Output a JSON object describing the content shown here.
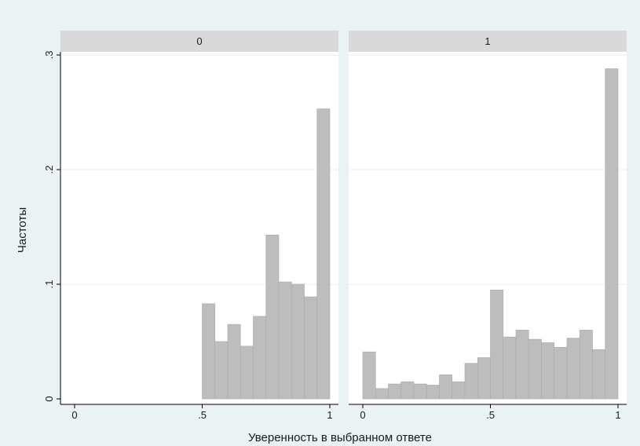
{
  "colors": {
    "background": "#eaf2f3",
    "plot_area": "#ffffff",
    "strip": "#d9d9d9",
    "bar_fill": "#bdbdbd",
    "bar_edge": "#a8a8a8",
    "grid": "#e9eef0",
    "axis": "#000000"
  },
  "chart_data": {
    "type": "bar",
    "xlabel": "Уверенность в выбранном ответе",
    "ylabel": "Частоты",
    "ylim": [
      0,
      0.3
    ],
    "y_ticks": [
      0,
      0.1,
      0.2,
      0.3
    ],
    "y_tick_labels": [
      "0",
      ".1",
      ".2",
      ".3"
    ],
    "xlim": [
      0,
      1
    ],
    "x_ticks": [
      0,
      0.5,
      1
    ],
    "x_tick_labels": [
      "0",
      ".5",
      "1"
    ],
    "bin_width": 0.05,
    "grid": "horizontal",
    "panels": [
      {
        "label": "0",
        "bins": [
          {
            "x0": 0.5,
            "value": 0.083
          },
          {
            "x0": 0.55,
            "value": 0.05
          },
          {
            "x0": 0.6,
            "value": 0.065
          },
          {
            "x0": 0.65,
            "value": 0.046
          },
          {
            "x0": 0.7,
            "value": 0.072
          },
          {
            "x0": 0.75,
            "value": 0.143
          },
          {
            "x0": 0.8,
            "value": 0.102
          },
          {
            "x0": 0.85,
            "value": 0.1
          },
          {
            "x0": 0.9,
            "value": 0.089
          },
          {
            "x0": 0.95,
            "value": 0.253
          }
        ]
      },
      {
        "label": "1",
        "bins": [
          {
            "x0": 0.0,
            "value": 0.041
          },
          {
            "x0": 0.05,
            "value": 0.009
          },
          {
            "x0": 0.1,
            "value": 0.013
          },
          {
            "x0": 0.15,
            "value": 0.015
          },
          {
            "x0": 0.2,
            "value": 0.013
          },
          {
            "x0": 0.25,
            "value": 0.012
          },
          {
            "x0": 0.3,
            "value": 0.021
          },
          {
            "x0": 0.35,
            "value": 0.015
          },
          {
            "x0": 0.4,
            "value": 0.031
          },
          {
            "x0": 0.45,
            "value": 0.036
          },
          {
            "x0": 0.5,
            "value": 0.095
          },
          {
            "x0": 0.55,
            "value": 0.054
          },
          {
            "x0": 0.6,
            "value": 0.06
          },
          {
            "x0": 0.65,
            "value": 0.052
          },
          {
            "x0": 0.7,
            "value": 0.049
          },
          {
            "x0": 0.75,
            "value": 0.045
          },
          {
            "x0": 0.8,
            "value": 0.053
          },
          {
            "x0": 0.85,
            "value": 0.06
          },
          {
            "x0": 0.9,
            "value": 0.043
          },
          {
            "x0": 0.95,
            "value": 0.288
          }
        ]
      }
    ]
  }
}
